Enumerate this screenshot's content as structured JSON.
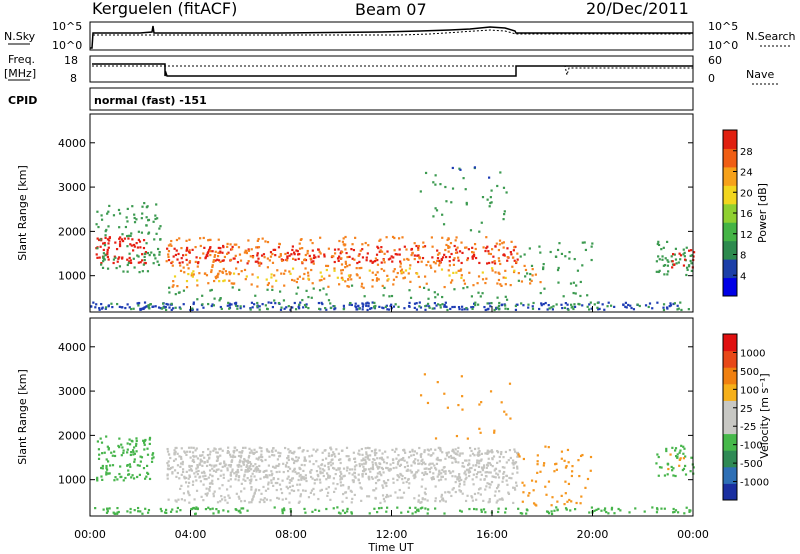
{
  "header": {
    "station": "Kerguelen (fitACF)",
    "beam": "Beam 07",
    "date": "20/Dec/2011"
  },
  "top_panel": {
    "left_label": "N.Sky",
    "right_label": "N.Search",
    "left_ticks": [
      "10^5",
      "10^0"
    ],
    "right_ticks": [
      "10^5",
      "10^0"
    ]
  },
  "freq_panel": {
    "left_label_1": "Freq.",
    "left_label_2": "[MHz]",
    "right_label": "Nave",
    "left_ticks": [
      "18",
      "8"
    ],
    "right_ticks": [
      "60",
      "0"
    ]
  },
  "cpid": {
    "label": "CPID",
    "value": "normal (fast) -151"
  },
  "chart_data": [
    {
      "type": "heatmap",
      "name": "power",
      "ylabel": "Slant Range [km]",
      "colorbar_label": "Power [dB]",
      "ylim": [
        180,
        4650
      ],
      "yticks": [
        1000,
        2000,
        3000,
        4000
      ],
      "colorbar_ticks": [
        "28",
        "24",
        "20",
        "16",
        "12",
        "8",
        "4"
      ],
      "colorbar_colors": [
        "#0000e6",
        "#1c3fa8",
        "#2d8a4e",
        "#44b445",
        "#8fd030",
        "#f2d61e",
        "#f6a11a",
        "#f05e14",
        "#e02010"
      ]
    },
    {
      "type": "heatmap",
      "name": "velocity",
      "ylabel": "Slant Range [km]",
      "colorbar_label": "Velocity [m s⁻¹]",
      "ylim": [
        180,
        4650
      ],
      "yticks": [
        1000,
        2000,
        3000,
        4000
      ],
      "colorbar_ticks": [
        "1000",
        "500",
        "100",
        "25",
        "-25",
        "-100",
        "-500",
        "-1000"
      ],
      "colorbar_colors": [
        "#1a2fa0",
        "#2e6fb5",
        "#2f8a55",
        "#46b84a",
        "#c8c8c4",
        "#c8c8c4",
        "#f6b01a",
        "#f08010",
        "#e84818",
        "#e01010"
      ]
    }
  ],
  "x_axis": {
    "label": "Time UT",
    "ticks": [
      "00:00",
      "04:00",
      "08:00",
      "12:00",
      "16:00",
      "20:00",
      "00:00"
    ]
  },
  "colors": {
    "power_red": "#e61e12",
    "power_orange": "#f5821e",
    "power_yellow": "#f0d21e",
    "power_green": "#3c9a50",
    "power_blue": "#1e3cb4",
    "velocity_grey": "#c4c4c0",
    "velocity_green": "#46b44a",
    "velocity_orange": "#f5961e"
  }
}
